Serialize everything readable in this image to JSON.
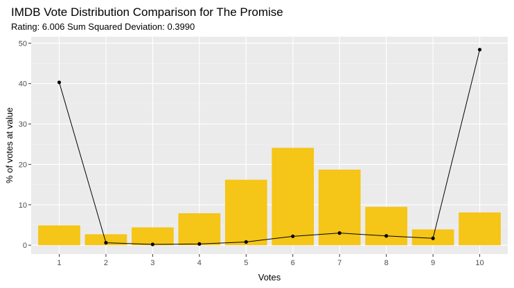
{
  "chart_data": {
    "type": "bar",
    "title": "IMDB Vote Distribution Comparison for The Promise",
    "subtitle": "Rating: 6.006 Sum Squared Deviation: 0.3990",
    "xlabel": "Votes",
    "ylabel": "% of votes at value",
    "categories": [
      "1",
      "2",
      "3",
      "4",
      "5",
      "6",
      "7",
      "8",
      "9",
      "10"
    ],
    "x": [
      1,
      2,
      3,
      4,
      5,
      6,
      7,
      8,
      9,
      10
    ],
    "ylim": [
      -2.2,
      51.6
    ],
    "xlim": [
      0.4,
      10.6
    ],
    "yticks": [
      0,
      10,
      20,
      30,
      40,
      50
    ],
    "grid": true,
    "series": [
      {
        "type": "bar",
        "values": [
          4.9,
          2.7,
          4.4,
          7.9,
          16.2,
          24.1,
          18.7,
          9.5,
          3.9,
          8.1
        ],
        "color": "#f5c518"
      },
      {
        "type": "line",
        "values": [
          40.3,
          0.6,
          0.2,
          0.3,
          0.8,
          2.2,
          3.0,
          2.3,
          1.7,
          48.4
        ],
        "color": "#000000"
      }
    ],
    "colors": {
      "panel": "#ebebeb",
      "grid_major": "#ffffff",
      "grid_minor": "#f5f5f5"
    }
  }
}
